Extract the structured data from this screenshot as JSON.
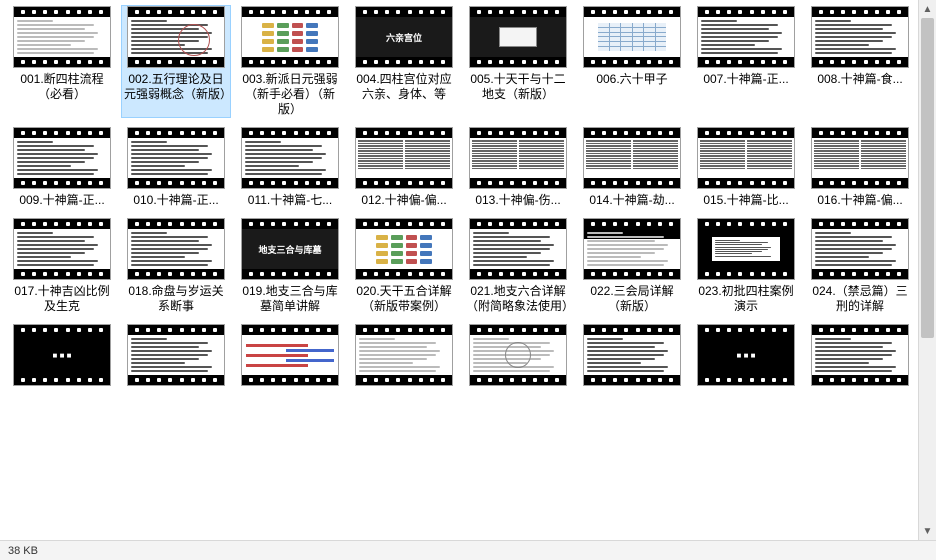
{
  "status": {
    "size": "38 KB"
  },
  "scrollbar": {
    "up": "▲",
    "down": "▼"
  },
  "items": [
    {
      "label": "001.断四柱流程（必看）",
      "selected": false,
      "style": "text-light"
    },
    {
      "label": "002.五行理论及日元强弱概念（新版）",
      "selected": true,
      "style": "star-text"
    },
    {
      "label": "003.新派日元强弱（新手必看）（新版）",
      "selected": false,
      "style": "color-grid"
    },
    {
      "label": "004.四柱宫位对应六亲、身体、等",
      "selected": false,
      "style": "dark-center",
      "centerText": "六亲宫位"
    },
    {
      "label": "005.十天干与十二地支（新版）",
      "selected": false,
      "style": "dark-box"
    },
    {
      "label": "006.六十甲子",
      "selected": false,
      "style": "table"
    },
    {
      "label": "007.十神篇-正...",
      "selected": false,
      "style": "text"
    },
    {
      "label": "008.十神篇-食...",
      "selected": false,
      "style": "text"
    },
    {
      "label": "009.十神篇-正...",
      "selected": false,
      "style": "text"
    },
    {
      "label": "010.十神篇-正...",
      "selected": false,
      "style": "text"
    },
    {
      "label": "011.十神篇-七...",
      "selected": false,
      "style": "text"
    },
    {
      "label": "012.十神偏-偏...",
      "selected": false,
      "style": "twocol"
    },
    {
      "label": "013.十神偏-伤...",
      "selected": false,
      "style": "twocol"
    },
    {
      "label": "014.十神篇-劫...",
      "selected": false,
      "style": "twocol"
    },
    {
      "label": "015.十神篇-比...",
      "selected": false,
      "style": "twocol"
    },
    {
      "label": "016.十神篇-偏...",
      "selected": false,
      "style": "twocol"
    },
    {
      "label": "017.十神吉凶比例及生克",
      "selected": false,
      "style": "text"
    },
    {
      "label": "018.命盘与岁运关系断事",
      "selected": false,
      "style": "text"
    },
    {
      "label": "019.地支三合与库墓简单讲解",
      "selected": false,
      "style": "dark-center",
      "centerText": "地支三合与库墓"
    },
    {
      "label": "020.天干五合详解（新版带案例）",
      "selected": false,
      "style": "color-grid"
    },
    {
      "label": "021.地支六合详解（附简略象法使用）",
      "selected": false,
      "style": "text"
    },
    {
      "label": "022.三会局详解（新版）",
      "selected": false,
      "style": "dark-top"
    },
    {
      "label": "023.初批四柱案例演示",
      "selected": false,
      "style": "dark-box-white"
    },
    {
      "label": "024.（禁忌篇）三刑的详解",
      "selected": false,
      "style": "text"
    },
    {
      "label": "",
      "selected": false,
      "style": "dark-title"
    },
    {
      "label": "",
      "selected": false,
      "style": "text"
    },
    {
      "label": "",
      "selected": false,
      "style": "bars"
    },
    {
      "label": "",
      "selected": false,
      "style": "text-light"
    },
    {
      "label": "",
      "selected": false,
      "style": "circle"
    },
    {
      "label": "",
      "selected": false,
      "style": "text"
    },
    {
      "label": "",
      "selected": false,
      "style": "dark-title"
    },
    {
      "label": "",
      "selected": false,
      "style": "text"
    }
  ]
}
